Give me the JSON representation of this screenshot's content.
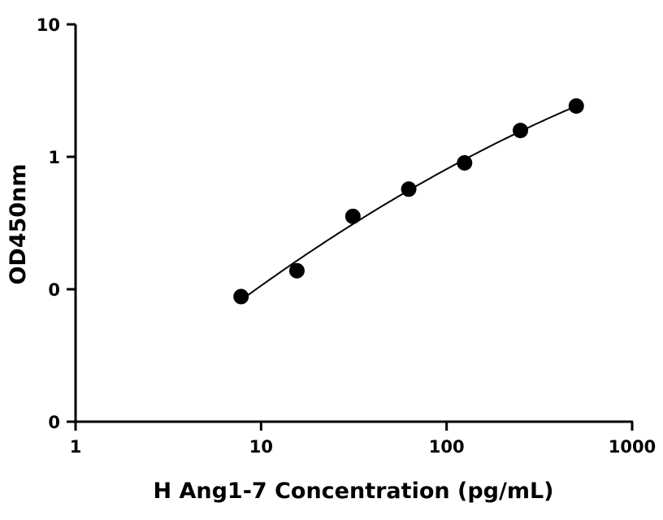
{
  "chart_data": {
    "type": "scatter",
    "xlabel": "H Ang1-7 Concentration (pg/mL)",
    "ylabel": "OD450nm",
    "x_scale": "log",
    "y_scale": "log",
    "xlim": [
      1,
      1000
    ],
    "x_ticks": [
      "1",
      "10",
      "100",
      "1000"
    ],
    "y_tick_labels": [
      "0",
      "0",
      "1",
      "10"
    ],
    "grid": false,
    "legend": "none",
    "colors": {
      "axis": "#000000",
      "points": "#000000",
      "curve": "#000000"
    },
    "series": [
      {
        "x": [
          7.8,
          15.6,
          31.25,
          62.5,
          125,
          250,
          500
        ],
        "y": [
          0.088,
          0.138,
          0.355,
          0.57,
          0.9,
          1.58,
          2.42
        ]
      }
    ]
  }
}
